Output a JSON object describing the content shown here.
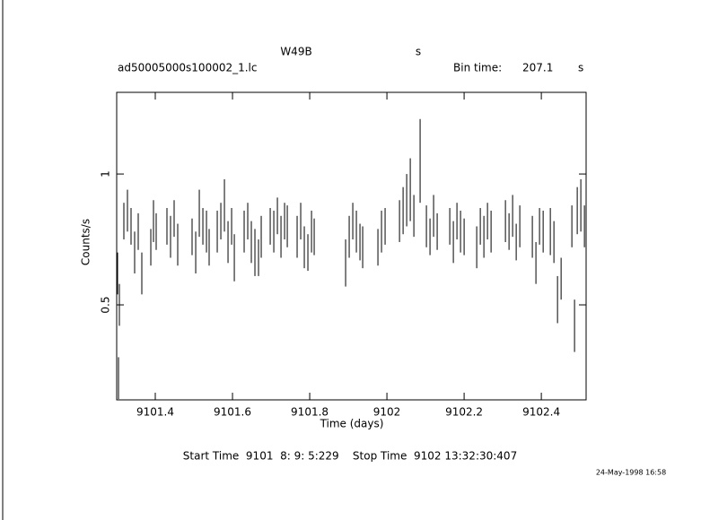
{
  "chart_data": {
    "type": "errorbar",
    "title": "W49B",
    "title_unit": "s",
    "file_name": "ad50005000s100002_1.lc",
    "bin_time_label": "Bin time:",
    "bin_time": "207.1",
    "bin_time_unit": "s",
    "x_label": "Time (days)",
    "y_label": "Counts/s",
    "footer": "Start Time  9101  8: 9: 5:229    Stop Time  9102 13:32:30:407",
    "date_stamp": "24-May-1998 16:58",
    "color": "#000000",
    "xlim": [
      9101.3,
      9102.516
    ],
    "ylim": [
      0.137,
      1.312
    ],
    "xticks": [
      9101.4,
      9101.6,
      9101.8,
      9102,
      9102.2,
      9102.4
    ],
    "yticks": [
      0.5,
      1
    ],
    "series": [
      {
        "name": "W49B",
        "x": [
          9101.3023,
          9101.3047,
          9101.307,
          9101.3186,
          9101.3279,
          9101.3372,
          9101.3465,
          9101.3558,
          9101.3651,
          9101.3884,
          9101.3953,
          9101.4023,
          9101.4302,
          9101.4395,
          9101.4488,
          9101.4581,
          9101.4953,
          9101.5047,
          9101.514,
          9101.5233,
          9101.5326,
          9101.5395,
          9101.5605,
          9101.5698,
          9101.5791,
          9101.5884,
          9101.5977,
          9101.6047,
          9101.6302,
          9101.6395,
          9101.6488,
          9101.6581,
          9101.6674,
          9101.6744,
          9101.6977,
          9101.707,
          9101.7163,
          9101.7256,
          9101.7349,
          9101.7419,
          9101.7674,
          9101.7767,
          9101.786,
          9101.7953,
          9101.8047,
          9101.8116,
          9101.893,
          9101.9023,
          9101.9116,
          9101.9209,
          9101.9302,
          9101.9372,
          9101.9767,
          9101.986,
          9101.9953,
          9102.0326,
          9102.0419,
          9102.0512,
          9102.0605,
          9102.0698,
          9102.086,
          9102.1023,
          9102.1116,
          9102.1209,
          9102.1302,
          9102.1628,
          9102.1721,
          9102.1814,
          9102.1907,
          9102.2,
          9102.2326,
          9102.2419,
          9102.2512,
          9102.2605,
          9102.2698,
          9102.307,
          9102.3163,
          9102.3256,
          9102.3349,
          9102.3442,
          9102.3767,
          9102.386,
          9102.3953,
          9102.4047,
          9102.4233,
          9102.4326,
          9102.4419,
          9102.4512,
          9102.4791,
          9102.486,
          9102.493,
          9102.5023,
          9102.5116
        ],
        "values": [
          0.62,
          0.22,
          0.5,
          0.82,
          0.86,
          0.8,
          0.7,
          0.78,
          0.62,
          0.72,
          0.82,
          0.78,
          0.8,
          0.76,
          0.83,
          0.73,
          0.76,
          0.7,
          0.85,
          0.8,
          0.78,
          0.72,
          0.78,
          0.82,
          0.88,
          0.74,
          0.8,
          0.68,
          0.78,
          0.82,
          0.74,
          0.7,
          0.68,
          0.76,
          0.8,
          0.78,
          0.84,
          0.76,
          0.82,
          0.8,
          0.76,
          0.82,
          0.72,
          0.7,
          0.78,
          0.76,
          0.66,
          0.76,
          0.82,
          0.78,
          0.74,
          0.72,
          0.72,
          0.78,
          0.8,
          0.82,
          0.86,
          0.9,
          0.94,
          0.84,
          1.05,
          0.8,
          0.76,
          0.84,
          0.78,
          0.8,
          0.74,
          0.82,
          0.78,
          0.76,
          0.72,
          0.8,
          0.76,
          0.82,
          0.78,
          0.82,
          0.78,
          0.84,
          0.74,
          0.8,
          0.76,
          0.66,
          0.8,
          0.78,
          0.78,
          0.74,
          0.52,
          0.6,
          0.8,
          0.42,
          0.86,
          0.88,
          0.8
        ],
        "errors": [
          0.08,
          0.08,
          0.08,
          0.07,
          0.08,
          0.07,
          0.08,
          0.07,
          0.08,
          0.07,
          0.08,
          0.07,
          0.07,
          0.08,
          0.07,
          0.08,
          0.07,
          0.08,
          0.09,
          0.07,
          0.08,
          0.07,
          0.08,
          0.07,
          0.1,
          0.08,
          0.07,
          0.09,
          0.08,
          0.07,
          0.08,
          0.09,
          0.07,
          0.08,
          0.07,
          0.08,
          0.07,
          0.08,
          0.07,
          0.08,
          0.08,
          0.07,
          0.08,
          0.07,
          0.08,
          0.07,
          0.09,
          0.08,
          0.07,
          0.08,
          0.07,
          0.08,
          0.07,
          0.08,
          0.07,
          0.08,
          0.09,
          0.1,
          0.12,
          0.08,
          0.16,
          0.08,
          0.07,
          0.08,
          0.07,
          0.07,
          0.08,
          0.07,
          0.08,
          0.07,
          0.08,
          0.07,
          0.08,
          0.07,
          0.08,
          0.08,
          0.07,
          0.08,
          0.07,
          0.08,
          0.08,
          0.08,
          0.07,
          0.08,
          0.09,
          0.08,
          0.09,
          0.08,
          0.08,
          0.1,
          0.09,
          0.1,
          0.08
        ]
      }
    ]
  }
}
